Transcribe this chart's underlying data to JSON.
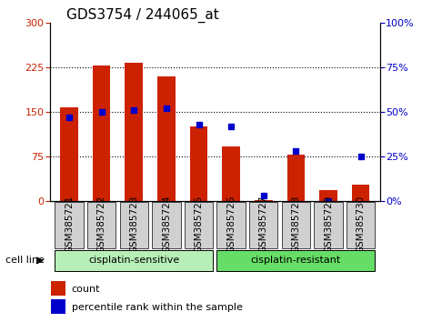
{
  "title": "GDS3754 / 244065_at",
  "samples": [
    "GSM385721",
    "GSM385722",
    "GSM385723",
    "GSM385724",
    "GSM385725",
    "GSM385726",
    "GSM385727",
    "GSM385728",
    "GSM385729",
    "GSM385730"
  ],
  "counts": [
    158,
    228,
    232,
    210,
    126,
    92,
    2,
    78,
    18,
    28
  ],
  "percentile_ranks": [
    47,
    50,
    51,
    52,
    43,
    42,
    3,
    28,
    0,
    25
  ],
  "left_ylim": [
    0,
    300
  ],
  "right_ylim": [
    0,
    100
  ],
  "left_yticks": [
    0,
    75,
    150,
    225,
    300
  ],
  "right_yticks": [
    0,
    25,
    50,
    75,
    100
  ],
  "right_yticklabels": [
    "0%",
    "25%",
    "50%",
    "75%",
    "100%"
  ],
  "bar_color": "#cc2200",
  "dot_color": "#0000cc",
  "group1_label": "cisplatin-sensitive",
  "group2_label": "cisplatin-resistant",
  "group1_indices": [
    0,
    1,
    2,
    3,
    4
  ],
  "group2_indices": [
    5,
    6,
    7,
    8,
    9
  ],
  "group1_bg": "#b8efb8",
  "group2_bg": "#66dd66",
  "cell_line_label": "cell line",
  "legend_count_label": "count",
  "legend_pct_label": "percentile rank within the sample",
  "tick_bg": "#d0d0d0",
  "title_fontsize": 11,
  "axis_fontsize": 8,
  "label_fontsize": 7.5,
  "group_fontsize": 8,
  "legend_fontsize": 8
}
